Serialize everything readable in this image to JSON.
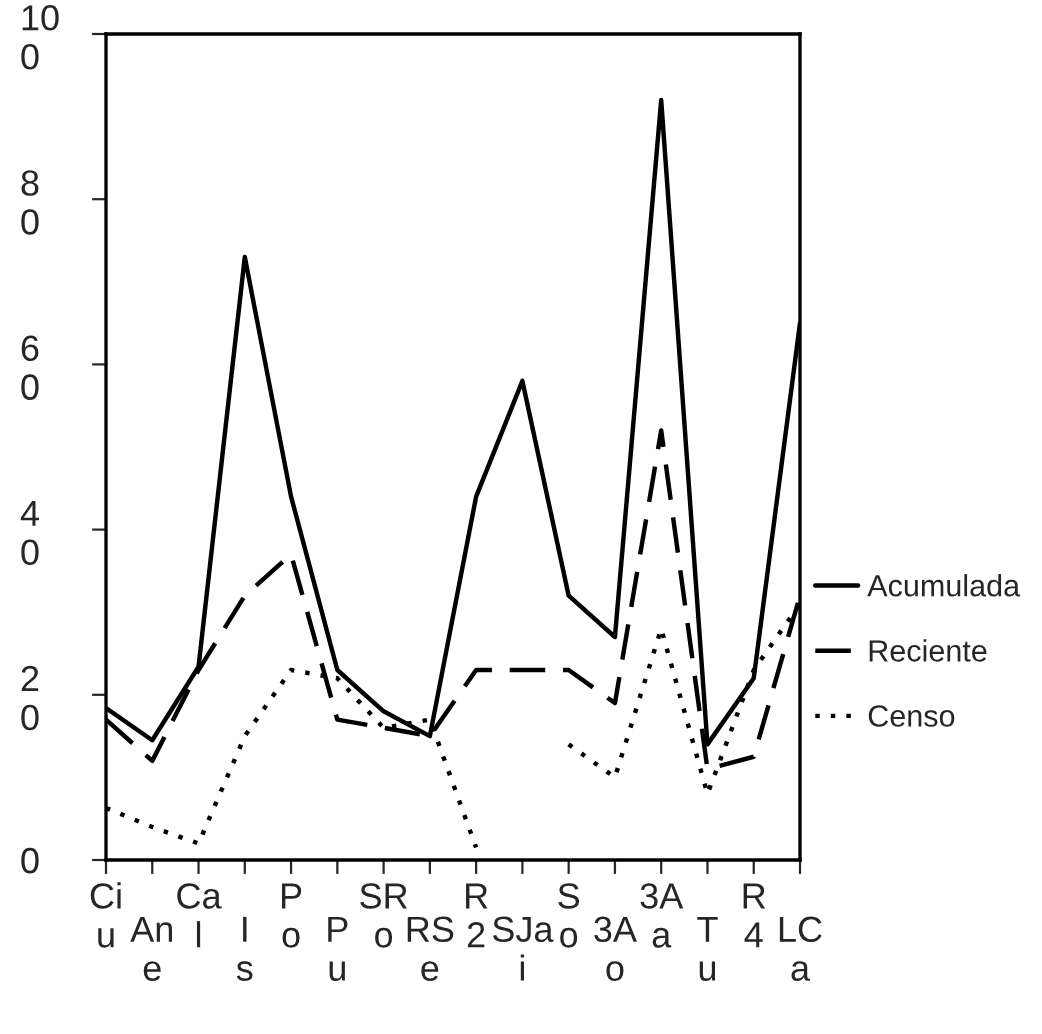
{
  "chart_data": {
    "type": "line",
    "categories": [
      "Ci\nu",
      "An\ne",
      "Ca\nl",
      "I\ns",
      "P\no",
      "P\nu",
      "SR\no",
      "RS\ne",
      "R\n2",
      "SJa\ni",
      "S\no",
      "3A\no",
      "3A\na",
      "T\nu",
      "R\n4",
      "LC\na"
    ],
    "series": [
      {
        "name": "Acumulada",
        "color": "#000000",
        "line_style": "solid",
        "values": [
          18.4,
          14.5,
          23.4,
          73,
          44,
          23,
          18,
          15,
          44,
          58,
          32,
          27,
          92,
          14,
          22,
          65
        ]
      },
      {
        "name": "Reciente",
        "color": "#000000",
        "line_style": "dashed",
        "values": [
          17,
          12,
          23,
          32,
          37,
          17,
          16,
          15,
          23,
          23,
          23,
          19,
          52,
          11,
          12.5,
          32
        ]
      },
      {
        "name": "Censo",
        "color": "#000000",
        "line_style": "dotted",
        "values": [
          6.3,
          4,
          2,
          15,
          23,
          22,
          16,
          17,
          1.5,
          null,
          14,
          10,
          28,
          8,
          23,
          31
        ]
      }
    ],
    "ylim": [
      0,
      100
    ],
    "yticks": [
      0,
      20,
      40,
      60,
      80,
      100
    ],
    "grid": false,
    "legend": "right",
    "marker": "none"
  }
}
